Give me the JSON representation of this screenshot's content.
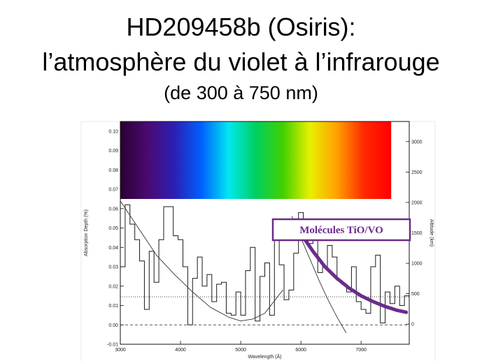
{
  "title": {
    "line1": "HD209458b (Osiris):",
    "line2": "l’atmosphère du violet à l’infrarouge",
    "line3": "(de 300 à 750 nm)"
  },
  "chart_data": {
    "type": "line",
    "xlabel": "Wavelength (Å)",
    "ylabel_left": "Absorption Depth (%)",
    "ylabel_right": "Altitude (km)",
    "xlim": [
      3000,
      7800
    ],
    "ylim": [
      -0.01,
      0.105
    ],
    "ylim_right": [
      -330,
      3330
    ],
    "x_ticks": [
      3000,
      4000,
      5000,
      6000,
      7000
    ],
    "y_ticks": [
      -0.01,
      0.0,
      0.01,
      0.02,
      0.03,
      0.04,
      0.05,
      0.06,
      0.07,
      0.08,
      0.09,
      0.1
    ],
    "y_tick_labels": [
      "-0.01",
      "0.00",
      "0.01",
      "0.02",
      "0.03",
      "0.04",
      "0.05",
      "0.06",
      "0.07",
      "0.08",
      "0.09",
      "0.10"
    ],
    "y_right_ticks": [
      0,
      500,
      1000,
      1500,
      2000,
      2500,
      3000
    ],
    "reference_lines": [
      {
        "y": 0.0,
        "style": "dashed"
      },
      {
        "y": 0.0145,
        "style": "dotted"
      }
    ],
    "spectrum_band": {
      "from_wavelength": 3000,
      "to_wavelength": 7500,
      "y_bottom": 0.065,
      "y_top": 0.105
    },
    "annotation": {
      "text": "Molécules TiO/VO",
      "color": "#6a2c8c"
    },
    "series": [
      {
        "kind": "step",
        "color": "#1a1a1a",
        "x": [
          3000,
          3080,
          3160,
          3240,
          3320,
          3400,
          3480,
          3560,
          3640,
          3720,
          3800,
          3880,
          3960,
          4040,
          4120,
          4200,
          4280,
          4360,
          4440,
          4520,
          4600,
          4680,
          4760,
          4840,
          4920,
          5000,
          5080,
          5160,
          5240,
          5320,
          5400,
          5480,
          5560,
          5640,
          5720,
          5800,
          5880,
          5960,
          6040,
          6120,
          6200,
          6280,
          6360,
          6440,
          6520,
          6600,
          6680,
          6760,
          6840,
          6920,
          7000,
          7080,
          7160,
          7240,
          7320,
          7400,
          7480,
          7560,
          7640,
          7720
        ],
        "values": [
          0.03,
          0.062,
          0.052,
          0.044,
          0.033,
          0.008,
          0.038,
          0.022,
          0.044,
          0.061,
          0.061,
          0.046,
          0.044,
          0.03,
          0.0,
          0.024,
          0.035,
          0.02,
          0.026,
          0.012,
          0.021,
          0.022,
          0.006,
          0.005,
          0.017,
          0.005,
          0.028,
          0.04,
          0.002,
          0.025,
          0.032,
          0.005,
          0.045,
          0.031,
          0.013,
          0.018,
          0.037,
          0.058,
          0.05,
          0.042,
          0.046,
          0.027,
          0.03,
          0.041,
          0.035,
          0.023,
          0.021,
          0.017,
          0.03,
          0.012,
          0.008,
          0.006,
          0.03,
          0.036,
          0.001,
          0.017,
          0.011,
          0.02,
          0.01,
          0.015
        ]
      },
      {
        "kind": "model",
        "color": "#333333",
        "x": [
          3000,
          3300,
          3600,
          3900,
          4200,
          4500,
          4800,
          5000,
          5200,
          5400,
          5700
        ],
        "values": [
          0.064,
          0.05,
          0.036,
          0.026,
          0.017,
          0.009,
          0.004,
          0.002,
          0.003,
          0.006,
          0.018
        ]
      },
      {
        "kind": "model",
        "color": "#333333",
        "x": [
          5850,
          6000,
          6150,
          6300,
          6450,
          6600,
          6750
        ],
        "values": [
          0.056,
          0.045,
          0.034,
          0.023,
          0.013,
          0.004,
          -0.004
        ]
      },
      {
        "kind": "model",
        "color": "#6a2c8c",
        "x": [
          6000,
          6200,
          6400,
          6600,
          6800,
          7000,
          7200,
          7400,
          7600,
          7750
        ],
        "values": [
          0.047,
          0.038,
          0.03,
          0.024,
          0.019,
          0.015,
          0.012,
          0.0095,
          0.0075,
          0.0065
        ]
      }
    ]
  }
}
